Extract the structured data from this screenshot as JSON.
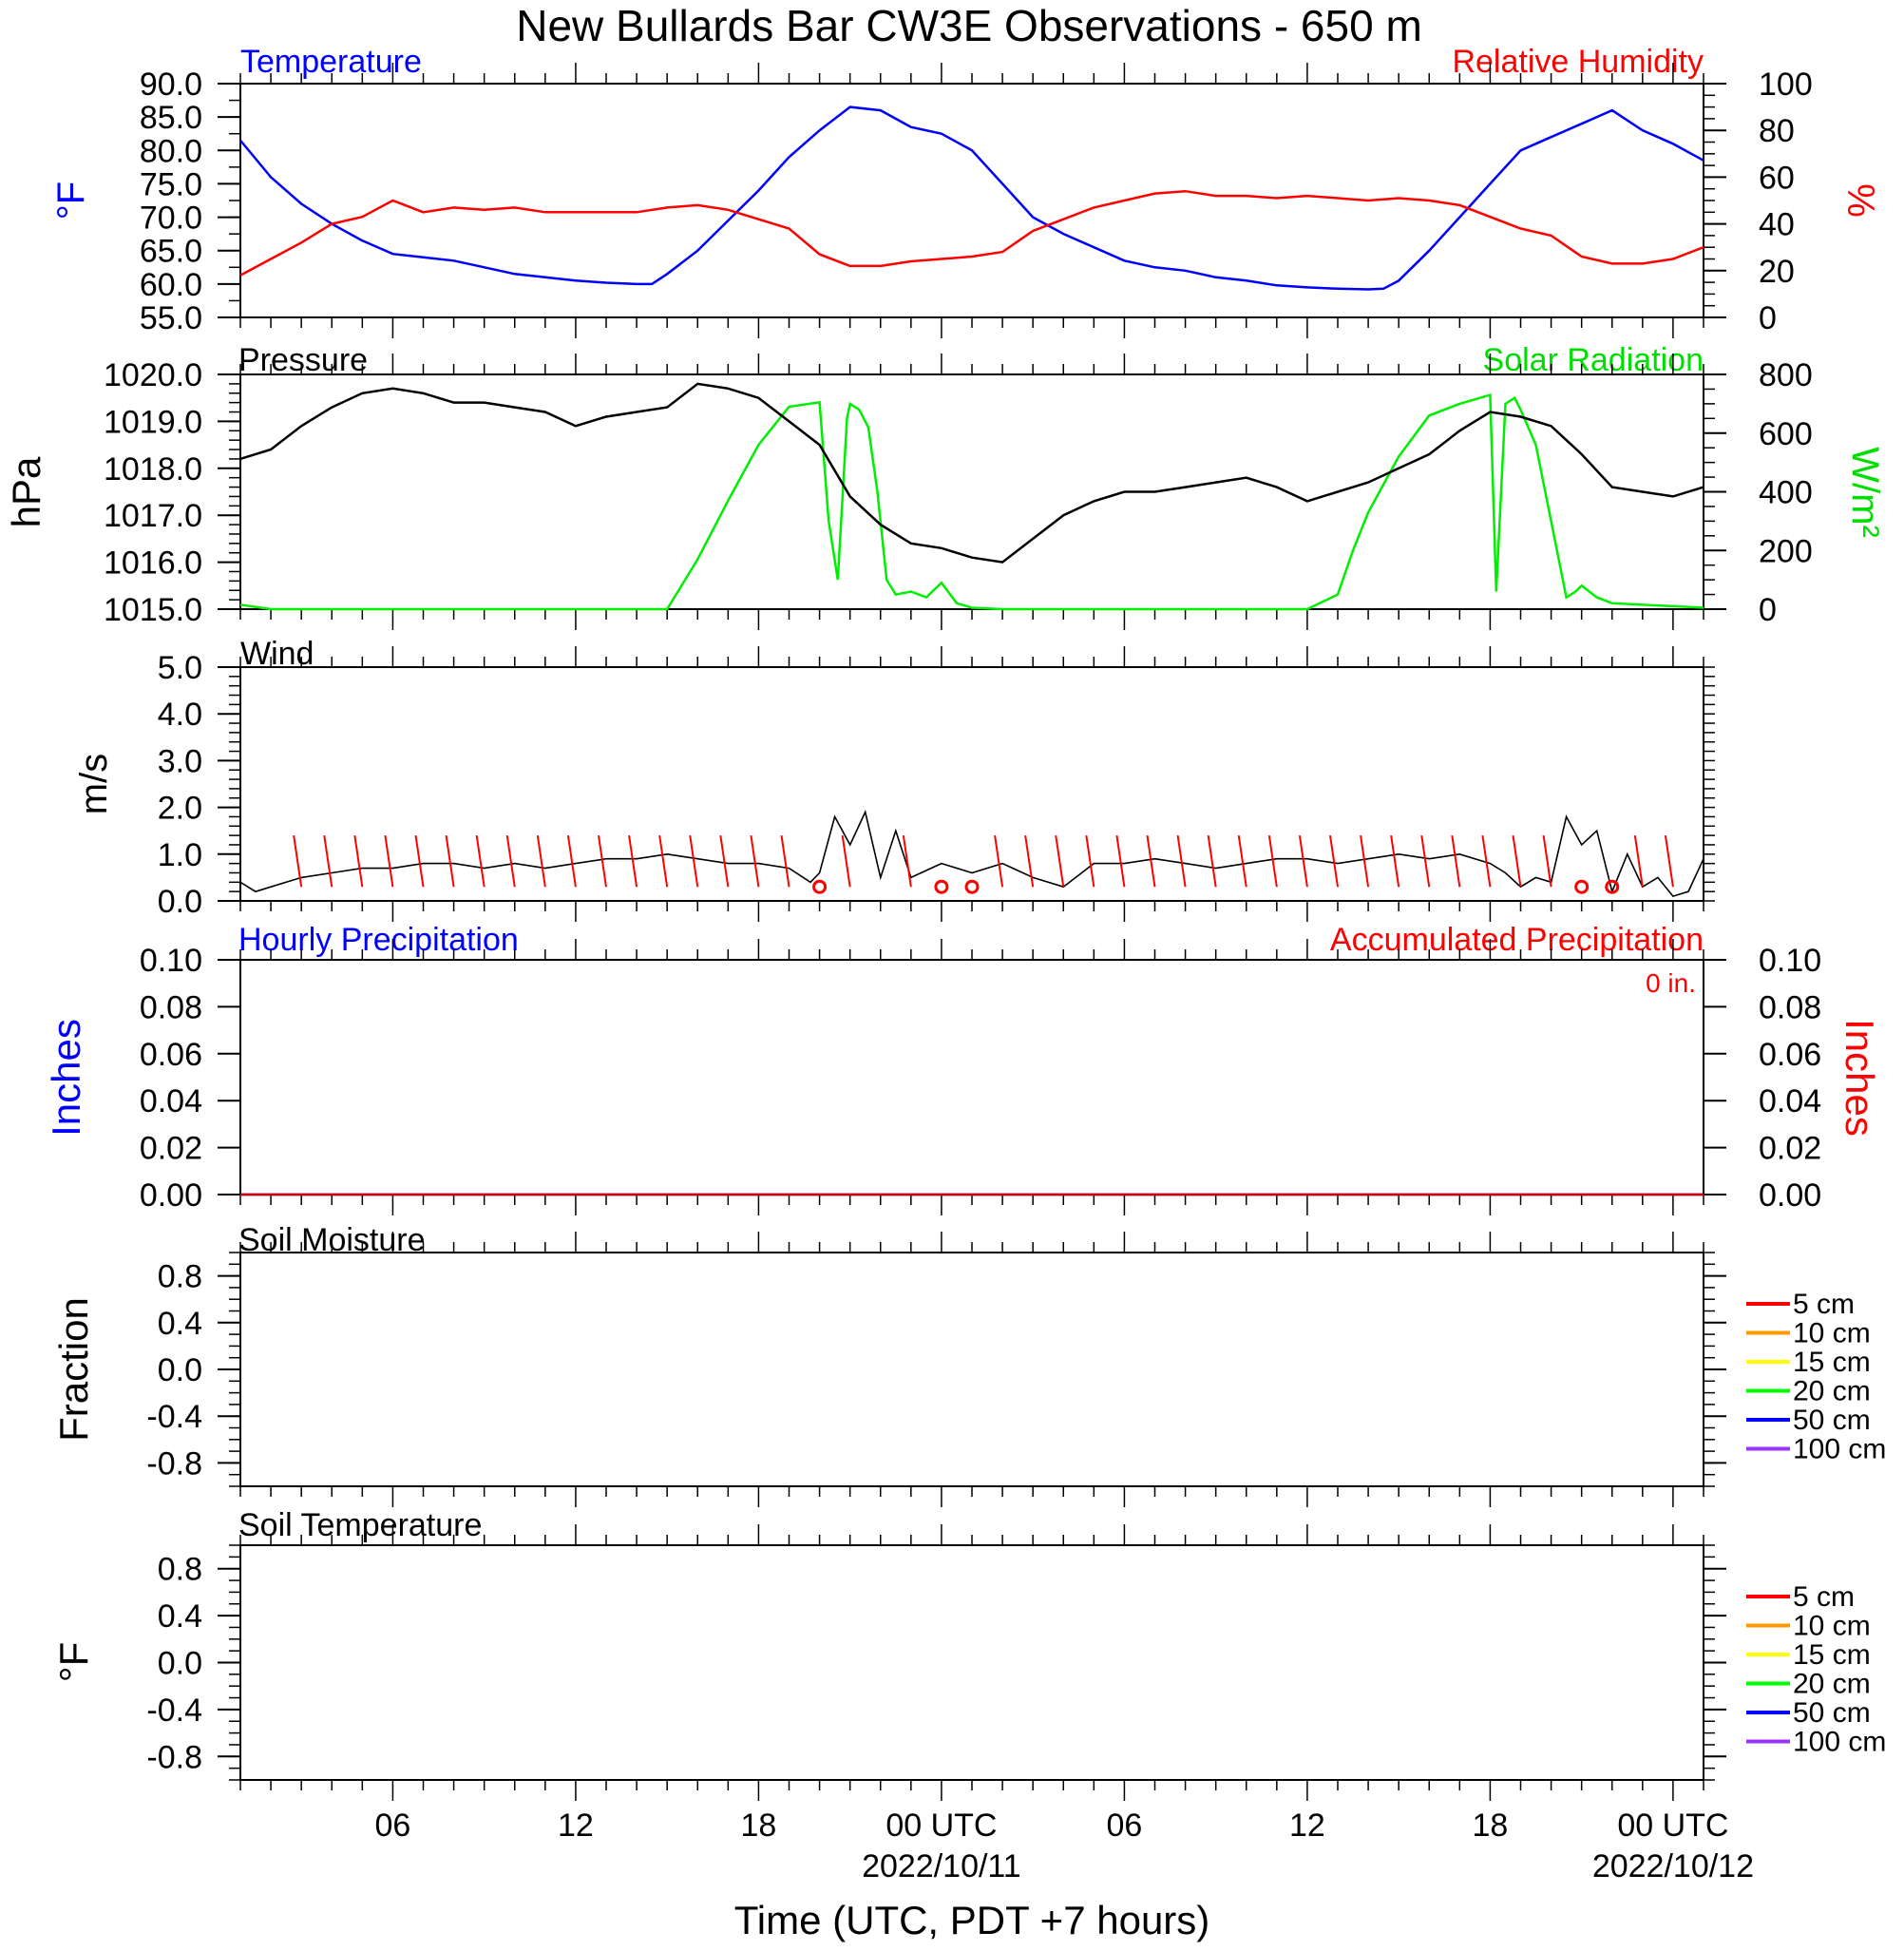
{
  "title": "New Bullards Bar CW3E Observations - 650 m",
  "xlabel": "Time (UTC, PDT +7 hours)",
  "x_axis": {
    "tick_labels": [
      "06",
      "12",
      "18",
      "00 UTC",
      "06",
      "12",
      "18",
      "00 UTC"
    ],
    "date_labels": [
      "2022/10/11",
      "2022/10/12"
    ]
  },
  "colors": {
    "temperature": "#0000ff",
    "humidity": "#ff0000",
    "pressure": "#000000",
    "solar": "#00ee00",
    "wind": "#000000",
    "wind_barb": "#ff0000",
    "hourly_precip": "#0000ff",
    "accum_precip": "#ff0000",
    "soil_5cm": "#ff0000",
    "soil_10cm": "#ff9900",
    "soil_15cm": "#ffff00",
    "soil_20cm": "#00ff00",
    "soil_50cm": "#0000ff",
    "soil_100cm": "#9933ff"
  },
  "panels": {
    "temp_rh": {
      "left_title": "Temperature",
      "right_title": "Relative Humidity",
      "left_unit": "°F",
      "right_unit": "%",
      "left_ticks": [
        "90.0",
        "85.0",
        "80.0",
        "75.0",
        "70.0",
        "65.0",
        "60.0",
        "55.0"
      ],
      "right_ticks": [
        "100",
        "80",
        "60",
        "40",
        "20",
        "0"
      ]
    },
    "pressure_solar": {
      "left_title": "Pressure",
      "right_title": "Solar Radiation",
      "left_unit": "hPa",
      "right_unit": "W/m²",
      "left_ticks": [
        "1020.0",
        "1019.0",
        "1018.0",
        "1017.0",
        "1016.0",
        "1015.0"
      ],
      "right_ticks": [
        "800",
        "600",
        "400",
        "200",
        "0"
      ]
    },
    "wind": {
      "left_title": "Wind",
      "left_unit": "m/s",
      "left_ticks": [
        "5.0",
        "4.0",
        "3.0",
        "2.0",
        "1.0",
        "0.0"
      ]
    },
    "precip": {
      "left_title": "Hourly Precipitation",
      "right_title": "Accumulated Precipitation",
      "total_label": "0 in.",
      "left_unit": "Inches",
      "right_unit": "Inches",
      "left_ticks": [
        "0.10",
        "0.08",
        "0.06",
        "0.04",
        "0.02",
        "0.00"
      ],
      "right_ticks": [
        "0.10",
        "0.08",
        "0.06",
        "0.04",
        "0.02",
        "0.00"
      ]
    },
    "soil_moisture": {
      "left_title": "Soil Moisture",
      "left_unit": "Fraction",
      "left_ticks": [
        "0.8",
        "0.4",
        "0.0",
        "-0.4",
        "-0.8"
      ],
      "legend": [
        "5 cm",
        "10 cm",
        "15 cm",
        "20 cm",
        "50 cm",
        "100 cm"
      ]
    },
    "soil_temp": {
      "left_title": "Soil Temperature",
      "left_unit": "°F",
      "left_ticks": [
        "0.8",
        "0.4",
        "0.0",
        "-0.4",
        "-0.8"
      ],
      "legend": [
        "5 cm",
        "10 cm",
        "15 cm",
        "20 cm",
        "50 cm",
        "100 cm"
      ]
    }
  },
  "chart_data": [
    {
      "type": "line",
      "title": "Temperature / Relative Humidity",
      "x_unit": "hours since 2022/10/10 00 UTC",
      "xlim": [
        1,
        49
      ],
      "series": [
        {
          "name": "Temperature",
          "axis": "left",
          "ylim": [
            55,
            90
          ],
          "x": [
            1,
            2,
            3,
            4,
            5,
            6,
            7,
            8,
            9,
            10,
            11,
            12,
            13,
            14,
            14.5,
            15,
            16,
            17,
            18,
            19,
            20,
            21,
            22,
            23,
            24,
            25,
            26,
            27,
            28,
            29,
            30,
            31,
            32,
            33,
            34,
            35,
            36,
            37,
            38,
            38.5,
            39,
            40,
            41,
            42,
            43,
            44,
            45,
            46,
            47,
            48,
            49
          ],
          "y": [
            81.5,
            76,
            72,
            69,
            66.5,
            64.5,
            64,
            63.5,
            62.5,
            61.5,
            61,
            60.5,
            60.2,
            60,
            60,
            61.5,
            65,
            69.5,
            74,
            79,
            83,
            86.5,
            86,
            83.5,
            82.5,
            80,
            75,
            70,
            67.5,
            65.5,
            63.5,
            62.5,
            62,
            61,
            60.5,
            59.8,
            59.5,
            59.3,
            59.2,
            59.3,
            60.5,
            65,
            70,
            75,
            80,
            82,
            84,
            86,
            83,
            81,
            78.5
          ]
        },
        {
          "name": "Relative Humidity",
          "axis": "right",
          "ylim": [
            0,
            100
          ],
          "x": [
            1,
            2,
            3,
            4,
            5,
            6,
            7,
            8,
            9,
            10,
            11,
            12,
            13,
            14,
            15,
            16,
            17,
            18,
            19,
            20,
            21,
            22,
            23,
            24,
            25,
            26,
            27,
            28,
            29,
            30,
            31,
            32,
            33,
            34,
            35,
            36,
            37,
            38,
            39,
            40,
            41,
            42,
            43,
            44,
            45,
            46,
            47,
            48,
            49
          ],
          "y": [
            18,
            25,
            32,
            40,
            43,
            50,
            45,
            47,
            46,
            47,
            45,
            45,
            45,
            45,
            47,
            48,
            46,
            42,
            38,
            27,
            22,
            22,
            24,
            25,
            26,
            28,
            37,
            42,
            47,
            50,
            53,
            54,
            52,
            52,
            51,
            52,
            51,
            50,
            51,
            50,
            48,
            43,
            38,
            35,
            26,
            23,
            23,
            25,
            30
          ]
        }
      ]
    },
    {
      "type": "line",
      "title": "Pressure / Solar Radiation",
      "x_unit": "hours since 2022/10/10 00 UTC",
      "xlim": [
        1,
        49
      ],
      "series": [
        {
          "name": "Pressure",
          "axis": "left",
          "ylim": [
            1015,
            1020
          ],
          "x": [
            1,
            2,
            3,
            4,
            5,
            6,
            7,
            8,
            9,
            10,
            11,
            12,
            13,
            14,
            15,
            16,
            17,
            18,
            19,
            20,
            21,
            22,
            23,
            24,
            25,
            26,
            27,
            28,
            29,
            30,
            31,
            32,
            33,
            34,
            35,
            36,
            37,
            38,
            39,
            40,
            41,
            42,
            43,
            44,
            45,
            46,
            47,
            48,
            49
          ],
          "y": [
            1018.2,
            1018.4,
            1018.9,
            1019.3,
            1019.6,
            1019.7,
            1019.6,
            1019.4,
            1019.4,
            1019.3,
            1019.2,
            1018.9,
            1019.1,
            1019.2,
            1019.3,
            1019.8,
            1019.7,
            1019.5,
            1019.0,
            1018.5,
            1017.4,
            1016.8,
            1016.4,
            1016.3,
            1016.1,
            1016.0,
            1016.5,
            1017.0,
            1017.3,
            1017.5,
            1017.5,
            1017.6,
            1017.7,
            1017.8,
            1017.6,
            1017.3,
            1017.5,
            1017.7,
            1018.0,
            1018.3,
            1018.8,
            1019.2,
            1019.1,
            1018.9,
            1018.3,
            1017.6,
            1017.5,
            1017.4,
            1017.6
          ]
        },
        {
          "name": "Solar Radiation",
          "axis": "right",
          "ylim": [
            0,
            800
          ],
          "x": [
            1,
            2,
            14,
            15,
            16,
            17,
            18,
            19,
            20,
            20.3,
            20.6,
            20.9,
            21,
            21.3,
            21.6,
            21.9,
            22.2,
            22.5,
            23,
            23.5,
            24,
            24.5,
            25,
            26,
            27,
            28,
            36,
            37,
            37.5,
            38,
            39,
            40,
            41,
            42,
            42.2,
            42.5,
            42.8,
            43,
            43.5,
            44,
            44.5,
            44.8,
            45,
            45.5,
            46,
            47,
            48,
            49
          ],
          "y": [
            15,
            0,
            0,
            0,
            170,
            370,
            560,
            690,
            705,
            300,
            100,
            650,
            700,
            680,
            620,
            400,
            100,
            50,
            60,
            40,
            90,
            20,
            5,
            0,
            0,
            0,
            0,
            50,
            200,
            330,
            520,
            660,
            700,
            730,
            60,
            700,
            720,
            680,
            560,
            300,
            40,
            60,
            80,
            40,
            20,
            15,
            10,
            5
          ]
        }
      ]
    },
    {
      "type": "line",
      "title": "Wind",
      "x_unit": "hours since 2022/10/10 00 UTC",
      "xlim": [
        1,
        49
      ],
      "ylim": [
        0,
        5
      ],
      "series": [
        {
          "name": "Wind",
          "x": [
            1,
            1.5,
            2,
            3,
            4,
            5,
            6,
            7,
            8,
            9,
            10,
            11,
            12,
            13,
            14,
            15,
            16,
            17,
            18,
            19,
            19.7,
            20,
            20.5,
            21,
            21.5,
            22,
            22.5,
            23,
            24,
            25,
            26,
            27,
            28,
            29,
            30,
            31,
            32,
            33,
            34,
            35,
            36,
            37,
            38,
            39,
            40,
            41,
            42,
            42.5,
            43,
            43.5,
            44,
            44.5,
            45,
            45.5,
            46,
            46.5,
            47,
            47.5,
            48,
            48.5,
            49
          ],
          "y": [
            0.4,
            0.2,
            0.3,
            0.5,
            0.6,
            0.7,
            0.7,
            0.8,
            0.8,
            0.7,
            0.8,
            0.7,
            0.8,
            0.9,
            0.9,
            1.0,
            0.9,
            0.8,
            0.8,
            0.7,
            0.4,
            0.6,
            1.8,
            1.2,
            1.9,
            0.5,
            1.5,
            0.5,
            0.8,
            0.6,
            0.8,
            0.5,
            0.3,
            0.8,
            0.8,
            0.9,
            0.8,
            0.7,
            0.8,
            0.9,
            0.9,
            0.8,
            0.9,
            1.0,
            0.9,
            1.0,
            0.8,
            0.6,
            0.3,
            0.5,
            0.4,
            1.8,
            1.2,
            1.5,
            0.2,
            1.0,
            0.3,
            0.5,
            0.1,
            0.2,
            0.9
          ]
        },
        {
          "name": "Wind barbs",
          "x": [
            3,
            4,
            5,
            6,
            7,
            8,
            9,
            10,
            11,
            12,
            13,
            14,
            15,
            16,
            17,
            18,
            19,
            20,
            21,
            23,
            24,
            25,
            26,
            27,
            28,
            29,
            30,
            31,
            32,
            33,
            34,
            35,
            36,
            37,
            38,
            39,
            40,
            41,
            42,
            43,
            44,
            45,
            46,
            47,
            48
          ],
          "y": [
            0.9,
            0.9,
            0.9,
            0.9,
            0.9,
            0.9,
            0.9,
            0.9,
            0.9,
            0.9,
            0.9,
            0.9,
            0.9,
            0.9,
            0.9,
            0.9,
            0.9,
            0.3,
            0.9,
            0.9,
            0.3,
            0.3,
            0.9,
            0.9,
            0.9,
            0.9,
            0.9,
            0.9,
            0.9,
            0.9,
            0.9,
            0.9,
            0.9,
            0.9,
            0.9,
            0.9,
            0.9,
            0.9,
            0.9,
            0.9,
            0.9,
            0.3,
            0.3,
            0.9,
            0.9
          ]
        }
      ]
    },
    {
      "type": "line",
      "title": "Precipitation",
      "x_unit": "hours since 2022/10/10 00 UTC",
      "xlim": [
        1,
        49
      ],
      "ylim": [
        0,
        0.1
      ],
      "series": [
        {
          "name": "Hourly Precipitation",
          "x": [
            1,
            49
          ],
          "y": [
            0,
            0
          ]
        },
        {
          "name": "Accumulated Precipitation",
          "x": [
            1,
            49
          ],
          "y": [
            0,
            0
          ]
        }
      ]
    },
    {
      "type": "line",
      "title": "Soil Moisture",
      "ylim": [
        -1,
        1
      ],
      "series": []
    },
    {
      "type": "line",
      "title": "Soil Temperature",
      "ylim": [
        -1,
        1
      ],
      "series": []
    }
  ]
}
